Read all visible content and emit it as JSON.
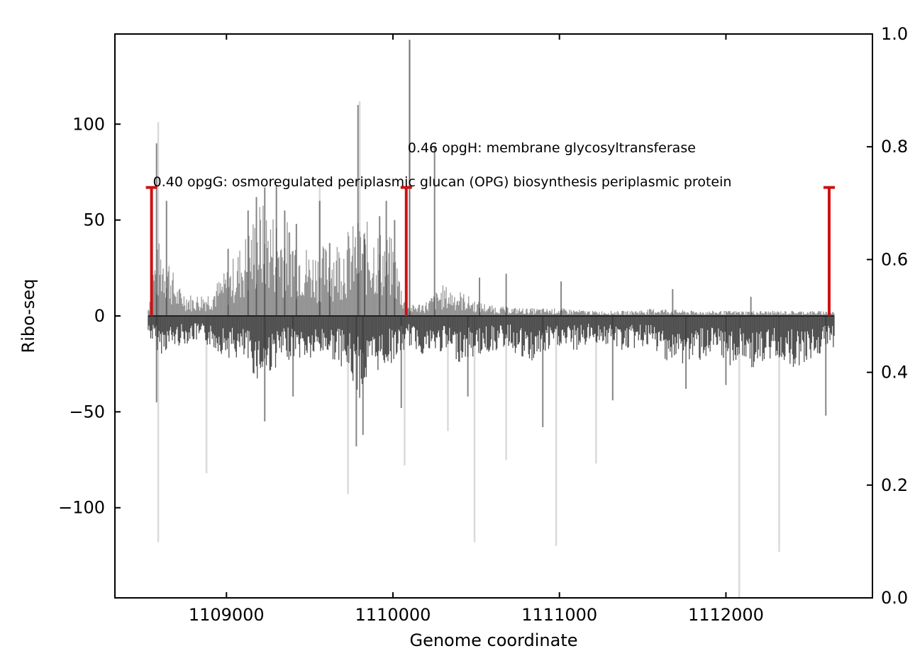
{
  "chart_data": {
    "type": "bar",
    "xlabel": "Genome coordinate",
    "ylabel": "Ribo-seq",
    "xlim": [
      1108330,
      1112880
    ],
    "ylim": [
      -147,
      147
    ],
    "y2lim": [
      0.0,
      1.0
    ],
    "xticks": [
      1109000,
      1110000,
      1111000,
      1112000
    ],
    "yticks": [
      -100,
      -50,
      0,
      50,
      100
    ],
    "y2ticks": [
      0.0,
      0.2,
      0.4,
      0.6,
      0.8,
      1.0
    ],
    "xtick_labels": [
      "1109000",
      "1110000",
      "1111000",
      "1112000"
    ],
    "ytick_labels": [
      "−100",
      "−50",
      "0",
      "50",
      "100"
    ],
    "y2tick_labels": [
      "0.0",
      "0.2",
      "0.4",
      "0.6",
      "0.8",
      "1.0"
    ],
    "grid": false,
    "colors": {
      "signal": "#333333",
      "spike": "#bbbbbb",
      "gene_bracket": "#cc1111"
    },
    "signal_extent": [
      1108530,
      1112650
    ],
    "pos_profile": [
      [
        1108530,
        4
      ],
      [
        1108560,
        22
      ],
      [
        1108600,
        30
      ],
      [
        1108640,
        28
      ],
      [
        1108700,
        12
      ],
      [
        1108800,
        8
      ],
      [
        1108900,
        10
      ],
      [
        1109000,
        18
      ],
      [
        1109100,
        30
      ],
      [
        1109200,
        45
      ],
      [
        1109300,
        40
      ],
      [
        1109400,
        36
      ],
      [
        1109500,
        26
      ],
      [
        1109600,
        28
      ],
      [
        1109700,
        32
      ],
      [
        1109800,
        38
      ],
      [
        1109900,
        35
      ],
      [
        1110000,
        30
      ],
      [
        1110060,
        10
      ],
      [
        1110100,
        4
      ],
      [
        1110200,
        6
      ],
      [
        1110300,
        12
      ],
      [
        1110400,
        10
      ],
      [
        1110500,
        6
      ],
      [
        1110600,
        4
      ],
      [
        1110800,
        3
      ],
      [
        1111000,
        3
      ],
      [
        1111200,
        2
      ],
      [
        1111400,
        2
      ],
      [
        1111600,
        3
      ],
      [
        1111800,
        2
      ],
      [
        1112000,
        2
      ],
      [
        1112200,
        2
      ],
      [
        1112400,
        2
      ],
      [
        1112650,
        2
      ]
    ],
    "neg_profile": [
      [
        1108530,
        -8
      ],
      [
        1108600,
        -15
      ],
      [
        1108700,
        -12
      ],
      [
        1108800,
        -10
      ],
      [
        1108900,
        -12
      ],
      [
        1109000,
        -16
      ],
      [
        1109100,
        -18
      ],
      [
        1109200,
        -26
      ],
      [
        1109300,
        -20
      ],
      [
        1109400,
        -16
      ],
      [
        1109500,
        -18
      ],
      [
        1109600,
        -15
      ],
      [
        1109700,
        -20
      ],
      [
        1109800,
        -32
      ],
      [
        1109900,
        -22
      ],
      [
        1110000,
        -18
      ],
      [
        1110100,
        -12
      ],
      [
        1110200,
        -16
      ],
      [
        1110300,
        -14
      ],
      [
        1110400,
        -18
      ],
      [
        1110500,
        -16
      ],
      [
        1110600,
        -14
      ],
      [
        1110700,
        -12
      ],
      [
        1110800,
        -20
      ],
      [
        1110900,
        -16
      ],
      [
        1111000,
        -12
      ],
      [
        1111100,
        -14
      ],
      [
        1111200,
        -10
      ],
      [
        1111300,
        -12
      ],
      [
        1111400,
        -14
      ],
      [
        1111500,
        -12
      ],
      [
        1111600,
        -15
      ],
      [
        1111700,
        -20
      ],
      [
        1111800,
        -18
      ],
      [
        1111900,
        -16
      ],
      [
        1112000,
        -20
      ],
      [
        1112100,
        -18
      ],
      [
        1112200,
        -22
      ],
      [
        1112300,
        -16
      ],
      [
        1112400,
        -20
      ],
      [
        1112500,
        -18
      ],
      [
        1112650,
        -12
      ]
    ],
    "peaks": [
      [
        1108580,
        90
      ],
      [
        1108640,
        60
      ],
      [
        1109010,
        35
      ],
      [
        1109130,
        55
      ],
      [
        1109180,
        62
      ],
      [
        1109230,
        67
      ],
      [
        1109300,
        68
      ],
      [
        1109350,
        55
      ],
      [
        1109420,
        48
      ],
      [
        1109560,
        60
      ],
      [
        1109620,
        38
      ],
      [
        1109790,
        110
      ],
      [
        1109830,
        40
      ],
      [
        1109920,
        52
      ],
      [
        1109960,
        60
      ],
      [
        1110010,
        50
      ],
      [
        1110100,
        144
      ],
      [
        1110250,
        88
      ],
      [
        1110520,
        20
      ],
      [
        1110680,
        22
      ],
      [
        1111010,
        18
      ],
      [
        1111680,
        14
      ],
      [
        1112150,
        10
      ],
      [
        1108580,
        -45
      ],
      [
        1109230,
        -55
      ],
      [
        1109400,
        -42
      ],
      [
        1109780,
        -68
      ],
      [
        1109820,
        -62
      ],
      [
        1110050,
        -48
      ],
      [
        1110450,
        -42
      ],
      [
        1110900,
        -58
      ],
      [
        1111320,
        -44
      ],
      [
        1111760,
        -38
      ],
      [
        1112000,
        -36
      ],
      [
        1112600,
        -52
      ]
    ],
    "spikes": [
      [
        1108590,
        101
      ],
      [
        1108590,
        -118
      ],
      [
        1108880,
        -82
      ],
      [
        1109560,
        70
      ],
      [
        1109730,
        -93
      ],
      [
        1109800,
        112
      ],
      [
        1110070,
        -78
      ],
      [
        1110100,
        144
      ],
      [
        1110330,
        -60
      ],
      [
        1110490,
        -118
      ],
      [
        1110680,
        -75
      ],
      [
        1110980,
        -120
      ],
      [
        1111220,
        -77
      ],
      [
        1112080,
        -147
      ],
      [
        1112320,
        -123
      ]
    ],
    "genes": [
      {
        "start": 1108550,
        "end": 1110080,
        "label": "0.40 opgG: osmoregulated periplasmic glucan (OPG) biosynthesis periplasmic protein",
        "score": 0.4
      },
      {
        "start": 1110080,
        "end": 1112620,
        "label": "0.46 opgH: membrane glycosyltransferase",
        "score": 0.46
      }
    ]
  }
}
